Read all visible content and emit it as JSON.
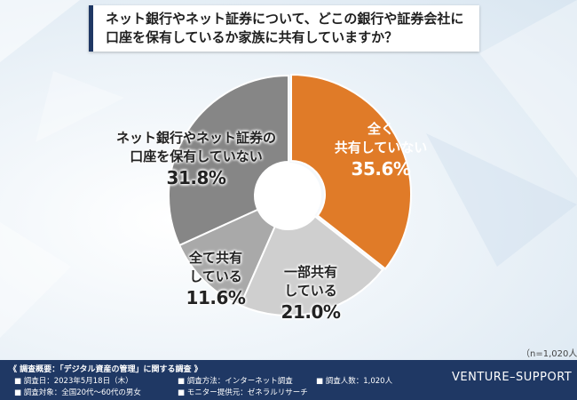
{
  "title": {
    "line1": "ネット銀行やネット証券について、どこの銀行や証券会社に",
    "line2": "口座を保有しているか家族に共有していますか？"
  },
  "chart_data": {
    "type": "pie",
    "donut": true,
    "categories": [
      "全く共有していない",
      "一部共有している",
      "全て共有している",
      "ネット銀行やネット証券の口座を保有していない"
    ],
    "values": [
      35.6,
      21.0,
      11.6,
      31.8
    ],
    "value_labels": [
      "35.6%",
      "21.0%",
      "11.6%",
      "31.8%"
    ],
    "colors": [
      "#e07b28",
      "#cfcfcf",
      "#a9a9a9",
      "#868686"
    ],
    "slice_labels": [
      {
        "lines": [
          "全く",
          "共有していない"
        ],
        "value": "35.6%"
      },
      {
        "lines": [
          "一部共有",
          "している"
        ],
        "value": "21.0%"
      },
      {
        "lines": [
          "全て共有",
          "している"
        ],
        "value": "11.6%"
      },
      {
        "lines": [
          "ネット銀行やネット証券の",
          "口座を保有していない"
        ],
        "value": "31.8%"
      }
    ],
    "sample_note": "（n=1,020人）"
  },
  "footer": {
    "overview": "《 調査概要：「デジタル資産の管理」に関する調査 》",
    "date": "■ 調査日：2023年5月18日（木）",
    "target": "■ 調査対象：全国20代〜60代の男女",
    "method": "■ 調査方法：インターネット調査",
    "provider": "■ モニター提供元：ゼネラルリサーチ",
    "count": "■ 調査人数：1,020人",
    "brand": "VENTURE–SUPPORT"
  }
}
